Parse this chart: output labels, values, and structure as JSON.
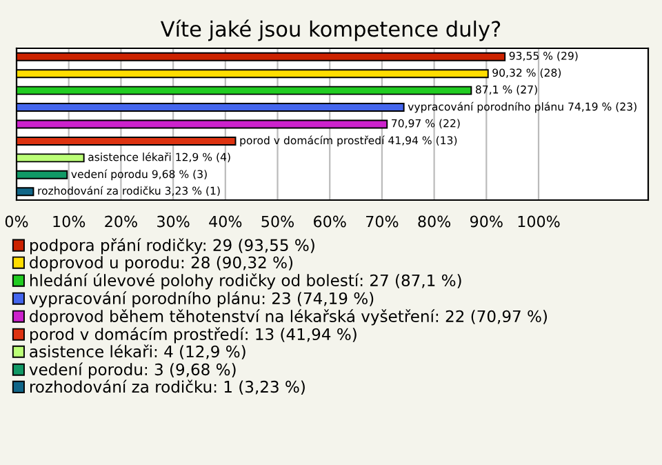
{
  "chart_data": {
    "type": "bar",
    "orientation": "horizontal",
    "title": "Víte jaké jsou kompetence duly?",
    "categories": [
      null,
      null,
      null,
      null,
      null,
      null,
      null,
      null,
      null
    ],
    "series": [
      {
        "name": "podpora přání rodičky: 29 (93,55 %)",
        "color": "#cc2200",
        "values": [
          93.55,
          null,
          null,
          null,
          null,
          null,
          null,
          null,
          null
        ],
        "value_labels": [
          "93,55 % (29)",
          null,
          null,
          null,
          null,
          null,
          null,
          null,
          null
        ]
      },
      {
        "name": "doprovod u porodu: 28 (90,32 %)",
        "color": "#ffdd00",
        "values": [
          null,
          90.32,
          null,
          null,
          null,
          null,
          null,
          null,
          null
        ],
        "value_labels": [
          null,
          "90,32 % (28)",
          null,
          null,
          null,
          null,
          null,
          null,
          null
        ]
      },
      {
        "name": "hledání úlevové polohy rodičky od bolestí: 27 (87,1 %)",
        "color": "#22cc22",
        "values": [
          null,
          null,
          87.1,
          null,
          null,
          null,
          null,
          null,
          null
        ],
        "value_labels": [
          null,
          null,
          "87,1 % (27)",
          null,
          null,
          null,
          null,
          null,
          null
        ]
      },
      {
        "name": "vypracování porodního plánu: 23 (74,19 %)",
        "color": "#4466ee",
        "values": [
          null,
          null,
          null,
          74.19,
          null,
          null,
          null,
          null,
          null
        ],
        "value_labels": [
          null,
          null,
          null,
          "vypracování porodního plánu 74,19 % (23)",
          null,
          null,
          null,
          null,
          null
        ]
      },
      {
        "name": "doprovod během těhotenství na lékařská vyšetření: 22 (70,97 %)",
        "color": "#cc22cc",
        "values": [
          null,
          null,
          null,
          null,
          70.97,
          null,
          null,
          null,
          null
        ],
        "value_labels": [
          null,
          null,
          null,
          null,
          "70,97 % (22)",
          null,
          null,
          null,
          null
        ]
      },
      {
        "name": "porod v domácím prostředí: 13 (41,94 %)",
        "color": "#dd3311",
        "values": [
          null,
          null,
          null,
          null,
          null,
          41.94,
          null,
          null,
          null
        ],
        "value_labels": [
          null,
          null,
          null,
          null,
          null,
          "porod v domácím prostředí 41,94 % (13)",
          null,
          null,
          null
        ]
      },
      {
        "name": "asistence lékaři: 4 (12,9 %)",
        "color": "#bbff77",
        "values": [
          null,
          null,
          null,
          null,
          null,
          null,
          12.9,
          null,
          null
        ],
        "value_labels": [
          null,
          null,
          null,
          null,
          null,
          null,
          "asistence lékaři 12,9 % (4)",
          null,
          null
        ]
      },
      {
        "name": "vedení porodu: 3 (9,68 %)",
        "color": "#119966",
        "values": [
          null,
          null,
          null,
          null,
          null,
          null,
          null,
          9.68,
          null
        ],
        "value_labels": [
          null,
          null,
          null,
          null,
          null,
          null,
          null,
          "vedení porodu 9,68 % (3)",
          null
        ]
      },
      {
        "name": "rozhodování za rodičku: 1 (3,23 %)",
        "color": "#116688",
        "values": [
          null,
          null,
          null,
          null,
          null,
          null,
          null,
          null,
          3.23
        ],
        "value_labels": [
          null,
          null,
          null,
          null,
          null,
          null,
          null,
          null,
          "rozhodování za rodičku 3,23 % (1)"
        ]
      }
    ],
    "xlim": [
      0,
      121
    ],
    "xticks": [
      {
        "value": 0,
        "label": "0%"
      },
      {
        "value": 10,
        "label": "10%"
      },
      {
        "value": 20,
        "label": "20%"
      },
      {
        "value": 30,
        "label": "30%"
      },
      {
        "value": 40,
        "label": "40%"
      },
      {
        "value": 50,
        "label": "50%"
      },
      {
        "value": 60,
        "label": "60%"
      },
      {
        "value": 70,
        "label": "70%"
      },
      {
        "value": 80,
        "label": "80%"
      },
      {
        "value": 90,
        "label": "90%"
      },
      {
        "value": 100,
        "label": "100%"
      }
    ],
    "grid": "x",
    "legend": "bottom"
  }
}
